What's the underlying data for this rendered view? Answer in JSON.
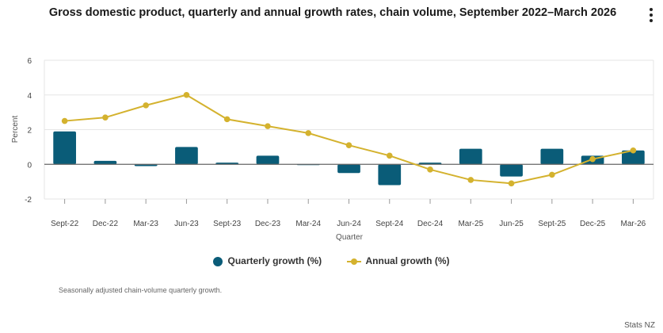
{
  "title": "Gross domestic product, quarterly and annual growth rates, chain volume, September 2022–March 2026",
  "note": "Seasonally adjusted chain-volume quarterly growth.",
  "credit": "Stats NZ",
  "colors": {
    "quarterly": "#0a5c78",
    "annual": "#d4b22e",
    "grid": "#e6e6e6",
    "axis": "#999999"
  },
  "icons": {
    "menu": "vertical-ellipsis-icon"
  },
  "chart_data": {
    "type": "bar+line",
    "title": "Gross domestic product, quarterly and annual growth rates, chain volume, September 2022–March 2026",
    "xlabel": "Quarter",
    "ylabel": "Percent",
    "ylim": [
      -2,
      6
    ],
    "yticks": [
      "6",
      "4",
      "2",
      "0",
      "-2"
    ],
    "grid": true,
    "legend_position": "bottom",
    "categories": [
      "Sept-22",
      "Dec-22",
      "Mar-23",
      "Jun-23",
      "Sept-23",
      "Dec-23",
      "Mar-24",
      "Jun-24",
      "Sept-24",
      "Dec-24",
      "Mar-25",
      "Jun-25",
      "Sept-25",
      "Dec-25",
      "Mar-26"
    ],
    "series": [
      {
        "name": "Quarterly growth (%)",
        "type": "bar",
        "values": [
          1.9,
          0.2,
          -0.1,
          1.0,
          0.1,
          0.5,
          0.0,
          -0.5,
          -1.2,
          0.1,
          0.9,
          -0.7,
          0.9,
          0.5,
          0.8
        ]
      },
      {
        "name": "Annual growth (%)",
        "type": "line",
        "values": [
          2.5,
          2.7,
          3.4,
          4.0,
          2.6,
          2.2,
          1.8,
          1.1,
          0.5,
          -0.3,
          -0.9,
          -1.1,
          -0.6,
          0.3,
          0.8
        ]
      }
    ]
  }
}
